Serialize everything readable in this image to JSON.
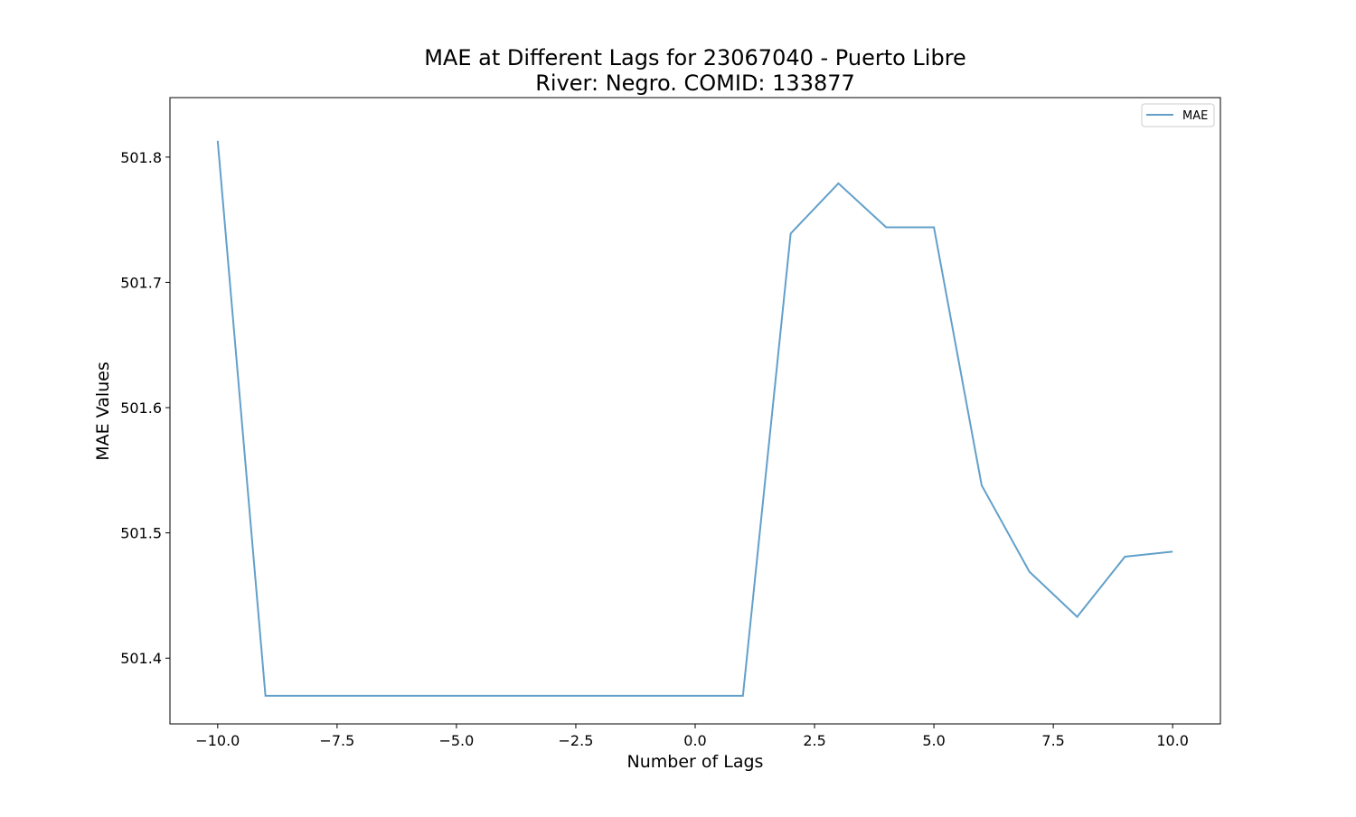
{
  "chart_data": {
    "type": "line",
    "title": "MAE at Different Lags for 23067040 - Puerto Libre",
    "subtitle": "River: Negro. COMID: 133877",
    "xlabel": "Number of Lags",
    "ylabel": "MAE Values",
    "xlim": [
      -11.0,
      11.0
    ],
    "ylim": [
      501.3475,
      501.8475
    ],
    "x_ticks": [
      -10.0,
      -7.5,
      -5.0,
      -2.5,
      0.0,
      2.5,
      5.0,
      7.5,
      10.0
    ],
    "x_tick_labels": [
      "−10.0",
      "−7.5",
      "−5.0",
      "−2.5",
      "0.0",
      "2.5",
      "5.0",
      "7.5",
      "10.0"
    ],
    "y_ticks": [
      501.4,
      501.5,
      501.6,
      501.7,
      501.8
    ],
    "y_tick_labels": [
      "501.4",
      "501.5",
      "501.6",
      "501.7",
      "501.8"
    ],
    "grid": false,
    "legend": {
      "position": "top-right",
      "entries": [
        "MAE"
      ]
    },
    "series": [
      {
        "name": "MAE",
        "color": "#1f77b4",
        "x": [
          -10,
          -9,
          -8,
          -7,
          -6,
          -5,
          -4,
          -3,
          -2,
          -1,
          0,
          1,
          2,
          3,
          4,
          5,
          6,
          7,
          8,
          9,
          10
        ],
        "y": [
          501.813,
          501.37,
          501.37,
          501.37,
          501.37,
          501.37,
          501.37,
          501.37,
          501.37,
          501.37,
          501.37,
          501.37,
          501.739,
          501.779,
          501.744,
          501.744,
          501.538,
          501.469,
          501.433,
          501.481,
          501.485
        ]
      }
    ]
  }
}
